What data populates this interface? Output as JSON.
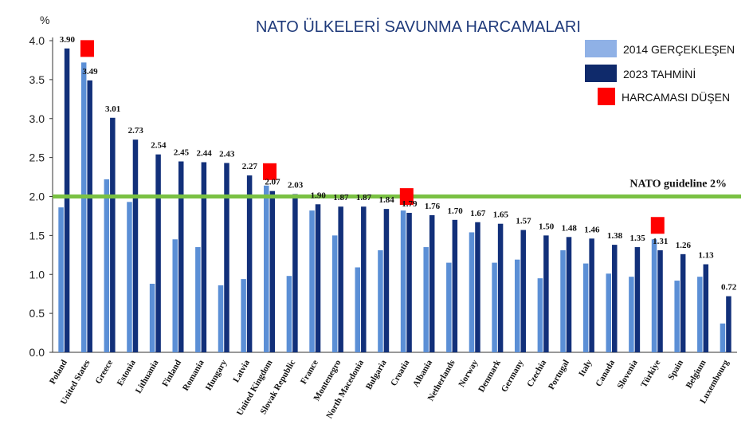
{
  "chart_data": {
    "type": "bar",
    "title": "NATO ÜLKELERİ SAVUNMA HARCAMALARI",
    "ylabel": "%",
    "ylim": [
      0,
      4.0
    ],
    "yticks": [
      "0.0",
      "0.5",
      "1.0",
      "1.5",
      "2.0",
      "2.5",
      "3.0",
      "3.5",
      "4.0"
    ],
    "categories": [
      "Poland",
      "United States",
      "Greece",
      "Estonia",
      "Lithuania",
      "Finland",
      "Romania",
      "Hungary",
      "Latvia",
      "United Kingdom",
      "Slovak Republic",
      "France",
      "Montenegro",
      "North Macedonia",
      "Bulgaria",
      "Croatia",
      "Albania",
      "Netherlands",
      "Norway",
      "Denmark",
      "Germany",
      "Czechia",
      "Portugal",
      "Italy",
      "Canada",
      "Slovenia",
      "Türkiye",
      "Spain",
      "Belgium",
      "Luxembourg"
    ],
    "series": [
      {
        "name": "2014 GERÇEKLEŞEN",
        "color": "#5b8fd6",
        "values": [
          1.86,
          3.72,
          2.22,
          1.93,
          0.88,
          1.45,
          1.35,
          0.86,
          0.94,
          2.14,
          0.98,
          1.82,
          1.5,
          1.09,
          1.31,
          1.82,
          1.35,
          1.15,
          1.54,
          1.15,
          1.19,
          0.95,
          1.31,
          1.14,
          1.01,
          0.97,
          1.45,
          0.92,
          0.97,
          0.37
        ]
      },
      {
        "name": "2023 TAHMİNİ",
        "color": "#12307a",
        "values": [
          3.9,
          3.49,
          3.01,
          2.73,
          2.54,
          2.45,
          2.44,
          2.43,
          2.27,
          2.07,
          2.03,
          1.9,
          1.87,
          1.87,
          1.84,
          1.79,
          1.76,
          1.7,
          1.67,
          1.65,
          1.57,
          1.5,
          1.48,
          1.46,
          1.38,
          1.35,
          1.31,
          1.26,
          1.13,
          0.72
        ]
      }
    ],
    "value_labels": [
      "3.90",
      "3.49",
      "3.01",
      "2.73",
      "2.54",
      "2.45",
      "2.44",
      "2.43",
      "2.27",
      "2.07",
      "2.03",
      "1.90",
      "1.87",
      "1.87",
      "1.84",
      "1.79",
      "1.76",
      "1.70",
      "1.67",
      "1.65",
      "1.57",
      "1.50",
      "1.48",
      "1.46",
      "1.38",
      "1.35",
      "1.31",
      "1.26",
      "1.13",
      "0.72"
    ],
    "decrease_markers": [
      "United States",
      "United Kingdom",
      "Croatia",
      "Türkiye"
    ],
    "decrease_color": "#ff0000",
    "guideline": {
      "value": 2.0,
      "label": "NATO guideline 2%",
      "color": "#7ac143"
    },
    "legend": {
      "placement": "top-right",
      "items": [
        {
          "label": "2014 GERÇEKLEŞEN",
          "color": "#8fb1e6"
        },
        {
          "label": "2023 TAHMİNİ",
          "color": "#0f2a6b"
        },
        {
          "label": "HARCAMASI DÜŞEN",
          "color": "#ff0000"
        }
      ]
    },
    "grid": false
  }
}
